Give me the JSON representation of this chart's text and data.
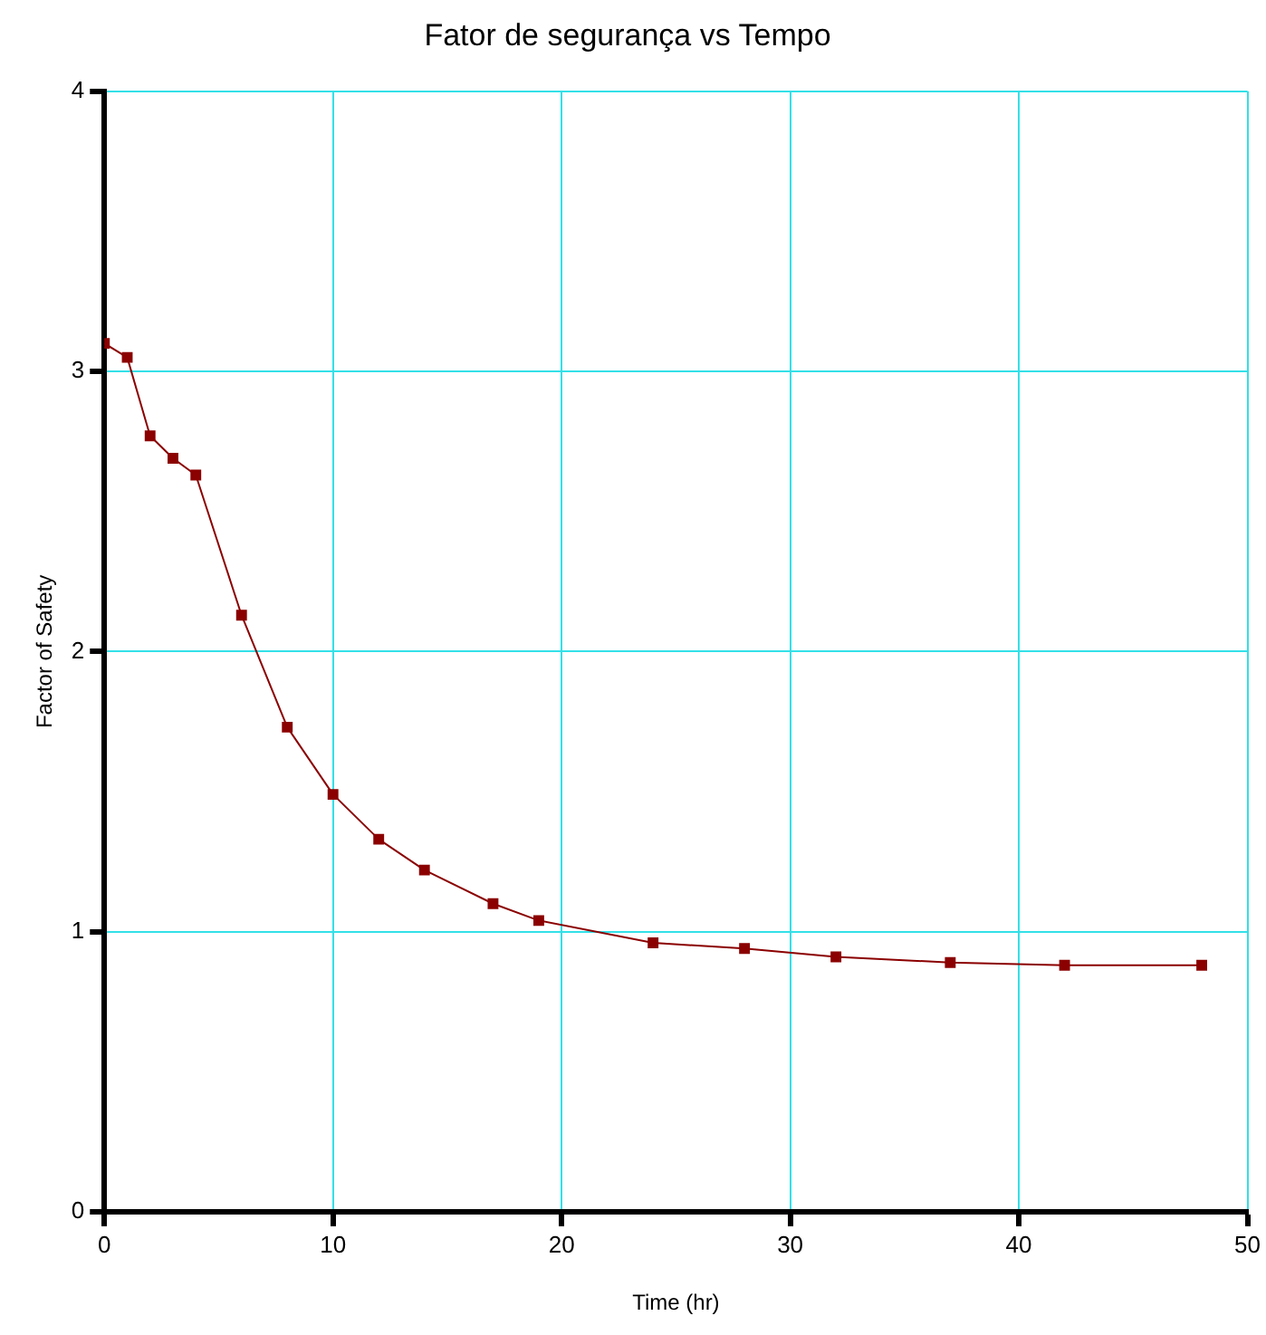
{
  "chart_data": {
    "type": "line",
    "title": "Fator de segurança vs Tempo",
    "xlabel": "Time (hr)",
    "ylabel": "Factor of Safety",
    "series": [
      {
        "color": "#8b0000",
        "x": [
          0,
          1,
          2,
          3,
          4,
          6,
          8,
          10,
          12,
          14,
          17,
          19,
          24,
          28,
          32,
          37,
          42,
          48
        ],
        "values": [
          3.1,
          3.05,
          2.77,
          2.69,
          2.63,
          2.13,
          1.73,
          1.49,
          1.33,
          1.22,
          1.1,
          1.04,
          0.96,
          0.94,
          0.91,
          0.89,
          0.88,
          0.88
        ]
      }
    ],
    "xlim": [
      0,
      50
    ],
    "xticks": [
      0,
      10,
      20,
      30,
      40,
      50
    ],
    "ylim": [
      0,
      4
    ],
    "yticks": [
      0,
      1,
      2,
      3,
      4
    ],
    "grid": true,
    "legend": false,
    "marker": "square",
    "line_style": "solid"
  }
}
